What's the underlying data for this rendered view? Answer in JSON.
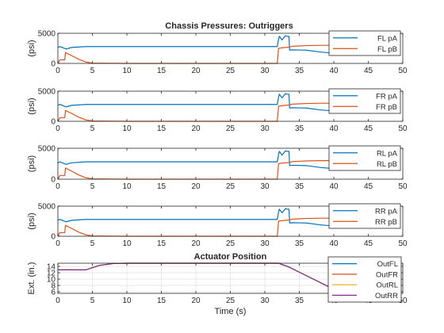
{
  "figure_title": "Chassis Pressures: Outriggers",
  "colors": {
    "pA": "#0072BD",
    "pB": "#D95319",
    "OutFL": "#0072BD",
    "OutFR": "#D95319",
    "OutRL": "#EDB120",
    "OutRR": "#7E2F8E",
    "axes": "#262626",
    "grid": "#dfdfdf"
  },
  "chart_data": [
    {
      "type": "line",
      "ylabel": "(psi)",
      "xlim": [
        0,
        50
      ],
      "ylim": [
        0,
        5000
      ],
      "xticks": [
        0,
        5,
        10,
        15,
        20,
        25,
        30,
        35,
        40,
        45,
        50
      ],
      "yticks": [
        0,
        5000
      ],
      "legend_position": "top-right",
      "series": [
        {
          "name": "FL pA",
          "color_key": "pA",
          "x": [
            0,
            0.3,
            1.2,
            2,
            4,
            6,
            10,
            20,
            31.8,
            32.0,
            32.1,
            32.5,
            33.0,
            33.2,
            33.5,
            33.6,
            34,
            36,
            38,
            40,
            41
          ],
          "y": [
            2650,
            2800,
            2400,
            2650,
            2800,
            2800,
            2800,
            2800,
            2800,
            4000,
            4500,
            3900,
            4600,
            4500,
            4500,
            2200,
            2250,
            2200,
            1900,
            1700,
            1400
          ]
        },
        {
          "name": "FL pB",
          "color_key": "pB",
          "x": [
            0,
            0.3,
            1.0,
            1.1,
            2,
            3,
            4,
            5,
            10,
            20,
            31.8,
            32.0,
            32.5,
            33.5,
            34,
            36,
            38,
            40,
            41
          ],
          "y": [
            0,
            600,
            600,
            1800,
            1300,
            700,
            250,
            50,
            0,
            0,
            0,
            2500,
            2600,
            2700,
            2850,
            2950,
            3000,
            3000,
            3000
          ]
        }
      ]
    },
    {
      "type": "line",
      "ylabel": "(psi)",
      "xlim": [
        0,
        50
      ],
      "ylim": [
        0,
        5000
      ],
      "xticks": [
        0,
        5,
        10,
        15,
        20,
        25,
        30,
        35,
        40,
        45,
        50
      ],
      "yticks": [
        0,
        5000
      ],
      "legend_position": "top-right",
      "series": [
        {
          "name": "FR pA",
          "color_key": "pA",
          "x": [
            0,
            0.3,
            1.2,
            2,
            4,
            6,
            10,
            20,
            31.8,
            32.0,
            32.1,
            32.5,
            33.0,
            33.2,
            33.5,
            33.6,
            34,
            36,
            38,
            40,
            41
          ],
          "y": [
            2650,
            2800,
            2400,
            2650,
            2800,
            2800,
            2800,
            2800,
            2800,
            4000,
            4500,
            3900,
            4600,
            4500,
            4500,
            2200,
            2250,
            2200,
            1900,
            1700,
            1400
          ]
        },
        {
          "name": "FR pB",
          "color_key": "pB",
          "x": [
            0,
            0.3,
            1.0,
            1.1,
            2,
            3,
            4,
            5,
            10,
            20,
            31.8,
            32.0,
            32.5,
            33.5,
            34,
            36,
            38,
            40,
            41
          ],
          "y": [
            0,
            600,
            600,
            1800,
            1300,
            700,
            250,
            50,
            0,
            0,
            0,
            2500,
            2600,
            2700,
            2850,
            2950,
            3000,
            3000,
            3000
          ]
        }
      ]
    },
    {
      "type": "line",
      "ylabel": "(psi)",
      "xlim": [
        0,
        50
      ],
      "ylim": [
        0,
        5000
      ],
      "xticks": [
        0,
        5,
        10,
        15,
        20,
        25,
        30,
        35,
        40,
        45,
        50
      ],
      "yticks": [
        0,
        5000
      ],
      "legend_position": "top-right",
      "series": [
        {
          "name": "RL pA",
          "color_key": "pA",
          "x": [
            0,
            0.3,
            1.2,
            2,
            4,
            6,
            10,
            20,
            31.8,
            32.0,
            32.1,
            32.5,
            33.0,
            33.2,
            33.5,
            33.6,
            34,
            36,
            38,
            40,
            41
          ],
          "y": [
            2650,
            2800,
            2400,
            2650,
            2800,
            2800,
            2800,
            2800,
            2800,
            4000,
            4500,
            3900,
            4600,
            4500,
            4500,
            2200,
            2250,
            2200,
            1900,
            1700,
            1400
          ]
        },
        {
          "name": "RL pB",
          "color_key": "pB",
          "x": [
            0,
            0.3,
            1.0,
            1.1,
            2,
            3,
            4,
            5,
            10,
            20,
            31.8,
            32.0,
            32.5,
            33.5,
            34,
            36,
            38,
            40,
            41
          ],
          "y": [
            0,
            600,
            600,
            1800,
            1300,
            700,
            250,
            50,
            0,
            0,
            0,
            2500,
            2600,
            2700,
            2850,
            2950,
            3000,
            3000,
            3000
          ]
        }
      ]
    },
    {
      "type": "line",
      "ylabel": "(psi)",
      "xlim": [
        0,
        50
      ],
      "ylim": [
        0,
        5000
      ],
      "xticks": [
        0,
        5,
        10,
        15,
        20,
        25,
        30,
        35,
        40,
        45,
        50
      ],
      "yticks": [
        0,
        5000
      ],
      "legend_position": "top-right",
      "series": [
        {
          "name": "RR pA",
          "color_key": "pA",
          "x": [
            0,
            0.3,
            1.2,
            2,
            4,
            6,
            10,
            20,
            31.8,
            32.0,
            32.1,
            32.5,
            33.0,
            33.2,
            33.5,
            33.6,
            34,
            36,
            38,
            40,
            41
          ],
          "y": [
            2650,
            2800,
            2400,
            2650,
            2800,
            2800,
            2800,
            2800,
            2800,
            4000,
            4500,
            3900,
            4600,
            4500,
            4500,
            2200,
            2250,
            2200,
            1900,
            1700,
            1400
          ]
        },
        {
          "name": "RR pB",
          "color_key": "pB",
          "x": [
            0,
            0.3,
            1.0,
            1.1,
            2,
            3,
            4,
            5,
            10,
            20,
            31.8,
            32.0,
            32.5,
            33.5,
            34,
            36,
            38,
            40,
            41
          ],
          "y": [
            0,
            600,
            600,
            1800,
            1300,
            700,
            250,
            50,
            0,
            0,
            0,
            2500,
            2600,
            2700,
            2850,
            2950,
            3000,
            3000,
            3000
          ]
        }
      ]
    },
    {
      "type": "line",
      "title": "Actuator Position",
      "xlabel": "Time (s)",
      "ylabel": "Ext. (in.)",
      "xlim": [
        0,
        50
      ],
      "ylim": [
        5.5,
        15
      ],
      "xticks": [
        0,
        5,
        10,
        15,
        20,
        25,
        30,
        35,
        40,
        45,
        50
      ],
      "yticks": [
        6,
        8,
        10,
        12,
        14
      ],
      "grid": true,
      "legend_position": "top-right",
      "series": [
        {
          "name": "OutFL",
          "color_key": "OutFL",
          "x": [
            0,
            4,
            6,
            8,
            10,
            32,
            33.5,
            40
          ],
          "y": [
            12.9,
            12.9,
            14.3,
            14.9,
            15,
            15,
            13.8,
            6.8
          ]
        },
        {
          "name": "OutFR",
          "color_key": "OutFR",
          "x": [
            0,
            4,
            6,
            8,
            10,
            32,
            33.5,
            40
          ],
          "y": [
            12.9,
            12.9,
            14.3,
            14.9,
            15,
            15,
            13.8,
            6.8
          ]
        },
        {
          "name": "OutRL",
          "color_key": "OutRL",
          "x": [
            0,
            4,
            6,
            8,
            10,
            32,
            33.5,
            40
          ],
          "y": [
            12.9,
            12.9,
            14.3,
            14.9,
            15,
            15,
            13.8,
            6.8
          ]
        },
        {
          "name": "OutRR",
          "color_key": "OutRR",
          "x": [
            0,
            4,
            6,
            8,
            10,
            32,
            33.5,
            40
          ],
          "y": [
            12.9,
            12.9,
            14.3,
            14.9,
            15,
            15,
            13.8,
            6.8
          ]
        }
      ]
    }
  ]
}
